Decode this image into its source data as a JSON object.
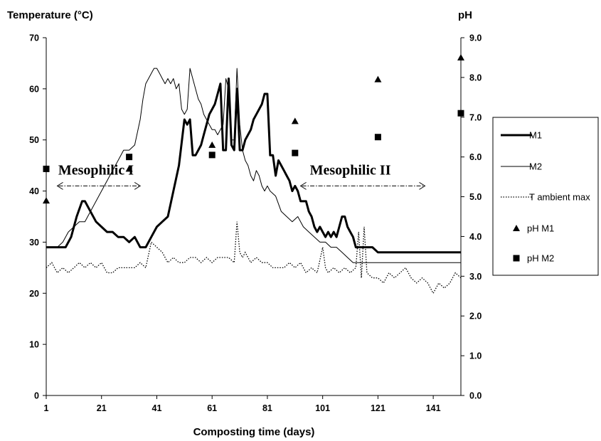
{
  "chart_data": {
    "type": "line",
    "ylabel": "Temperature (°C)",
    "y2label": "pH",
    "xlabel": "Composting time (days)",
    "xlim": [
      1,
      151
    ],
    "xticks": [
      1,
      21,
      41,
      61,
      81,
      101,
      121,
      141
    ],
    "ylim": [
      0,
      70
    ],
    "yticks": [
      0,
      10,
      20,
      30,
      40,
      50,
      60,
      70
    ],
    "y2lim": [
      0,
      9
    ],
    "y2ticks": [
      "0.0",
      "1.0",
      "2.0",
      "3.0",
      "4.0",
      "5.0",
      "6.0",
      "7.0",
      "8.0",
      "9.0"
    ],
    "grid": false,
    "legend_position": "right",
    "annotations": [
      {
        "text": "Mesophilic I",
        "x": 19,
        "y": 43.2,
        "arrow_from": 5,
        "arrow_to": 35,
        "arrow_y": 41
      },
      {
        "text": "Mesophilic II",
        "x": 111,
        "y": 43.2,
        "arrow_from": 93,
        "arrow_to": 138,
        "arrow_y": 41
      }
    ],
    "series": [
      {
        "name": "M1",
        "style": "thick-solid",
        "axis": "left",
        "x": [
          1,
          8,
          10,
          12,
          14,
          15,
          17,
          19,
          21,
          23,
          25,
          27,
          29,
          31,
          33,
          35,
          37,
          39,
          41,
          43,
          45,
          47,
          49,
          51,
          52,
          53,
          54,
          55,
          56,
          57,
          58,
          59,
          60,
          61,
          62,
          63,
          64,
          65,
          66,
          67,
          68,
          69,
          70,
          71,
          72,
          73,
          74,
          75,
          76,
          77,
          78,
          79,
          80,
          81,
          82,
          83,
          84,
          85,
          86,
          87,
          88,
          89,
          90,
          91,
          92,
          93,
          94,
          95,
          96,
          97,
          98,
          99,
          100,
          101,
          102,
          103,
          104,
          105,
          106,
          107,
          108,
          109,
          110,
          111,
          112,
          113,
          115,
          117,
          119,
          121,
          123,
          125,
          151
        ],
        "y": [
          29,
          29,
          31,
          35,
          38,
          38,
          36,
          34,
          33,
          32,
          32,
          31,
          31,
          30,
          31,
          29,
          29,
          31,
          33,
          34,
          35,
          40,
          45,
          54,
          53,
          54,
          47,
          47,
          48,
          49,
          51,
          53,
          55,
          56,
          57,
          59,
          61,
          48,
          48,
          62,
          49,
          48,
          60,
          48,
          48,
          50,
          51,
          52,
          54,
          55,
          56,
          57,
          59,
          59,
          47,
          47,
          43,
          46,
          45,
          44,
          43,
          42,
          40,
          41,
          40,
          38,
          38,
          38,
          36,
          35,
          33,
          32,
          33,
          32,
          31,
          32,
          31,
          32,
          31,
          33,
          35,
          35,
          33,
          32,
          31,
          29,
          29,
          29,
          29,
          28,
          28,
          28,
          28
        ]
      },
      {
        "name": "M2",
        "style": "thin-solid",
        "axis": "left",
        "x": [
          1,
          3,
          5,
          7,
          9,
          11,
          13,
          15,
          17,
          19,
          21,
          23,
          25,
          27,
          29,
          31,
          33,
          35,
          36,
          37,
          38,
          39,
          40,
          41,
          42,
          43,
          44,
          45,
          46,
          47,
          48,
          49,
          50,
          51,
          52,
          53,
          54,
          55,
          56,
          57,
          58,
          59,
          60,
          61,
          62,
          63,
          64,
          65,
          66,
          67,
          68,
          69,
          70,
          71,
          72,
          73,
          74,
          75,
          76,
          77,
          78,
          79,
          80,
          81,
          82,
          84,
          86,
          88,
          90,
          92,
          94,
          96,
          98,
          100,
          102,
          104,
          106,
          108,
          110,
          112,
          151
        ],
        "y": [
          29,
          29,
          29,
          30,
          32,
          33,
          34,
          34,
          36,
          38,
          40,
          42,
          44,
          46,
          48,
          48,
          49,
          54,
          58,
          61,
          62,
          63,
          64,
          64,
          63,
          62,
          61,
          62,
          61,
          62,
          60,
          61,
          56,
          55,
          56,
          64,
          62,
          60,
          58,
          57,
          55,
          54,
          53,
          52,
          52,
          51,
          52,
          53,
          62,
          60,
          50,
          50,
          64,
          53,
          48,
          46,
          45,
          43,
          42,
          44,
          43,
          41,
          40,
          41,
          40,
          39,
          36,
          35,
          34,
          35,
          33,
          32,
          31,
          30,
          30,
          29,
          29,
          28,
          27,
          26,
          26
        ]
      },
      {
        "name": "T ambient max",
        "style": "dotted",
        "axis": "left",
        "x": [
          1,
          3,
          5,
          7,
          9,
          11,
          13,
          15,
          17,
          19,
          21,
          23,
          25,
          27,
          29,
          31,
          33,
          35,
          37,
          39,
          41,
          43,
          45,
          47,
          49,
          51,
          53,
          55,
          57,
          59,
          61,
          63,
          65,
          67,
          69,
          70,
          71,
          72,
          73,
          75,
          77,
          79,
          81,
          83,
          85,
          87,
          89,
          91,
          93,
          95,
          97,
          99,
          101,
          102,
          103,
          105,
          107,
          109,
          111,
          113,
          114,
          115,
          116,
          117,
          119,
          121,
          123,
          125,
          127,
          129,
          131,
          133,
          135,
          137,
          139,
          141,
          143,
          145,
          147,
          149,
          151
        ],
        "y": [
          25,
          26,
          24,
          25,
          24,
          25,
          26,
          25,
          26,
          25,
          26,
          24,
          24,
          25,
          25,
          25,
          25,
          26,
          25,
          30,
          29,
          28,
          26,
          27,
          26,
          26,
          27,
          27,
          26,
          27,
          26,
          27,
          27,
          27,
          26,
          34,
          28,
          27,
          28,
          26,
          27,
          26,
          26,
          25,
          25,
          25,
          26,
          25,
          26,
          24,
          25,
          24,
          29,
          25,
          24,
          25,
          24,
          25,
          24,
          25,
          32,
          23,
          33,
          24,
          23,
          23,
          22,
          24,
          23,
          24,
          25,
          23,
          22,
          23,
          22,
          20,
          22,
          21,
          22,
          24,
          23
        ]
      },
      {
        "name": "pH M1",
        "style": "marker-triangle",
        "axis": "right",
        "x": [
          1,
          31,
          61,
          91,
          121,
          151
        ],
        "y": [
          4.9,
          5.7,
          6.3,
          6.9,
          7.95,
          8.5
        ]
      },
      {
        "name": "pH M2",
        "style": "marker-square",
        "axis": "right",
        "x": [
          1,
          31,
          61,
          91,
          121,
          151
        ],
        "y": [
          5.7,
          6.0,
          6.05,
          6.1,
          6.5,
          7.1
        ]
      }
    ]
  }
}
